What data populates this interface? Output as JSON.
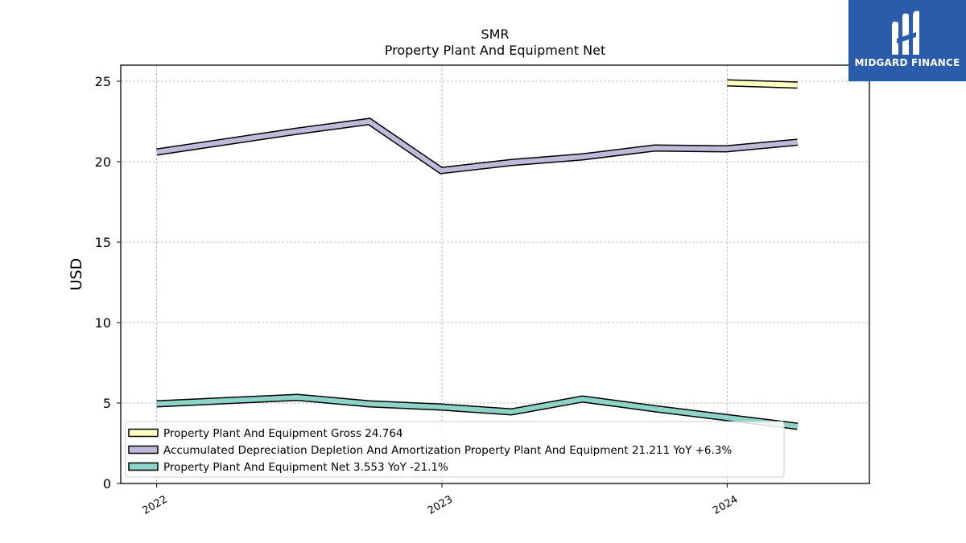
{
  "chart_data": {
    "type": "line",
    "title": "SMR",
    "subtitle": "Property Plant And Equipment Net",
    "ylabel": "USD",
    "ylim": [
      0,
      26
    ],
    "yticks": [
      0,
      5,
      10,
      15,
      20,
      25
    ],
    "xticks": [
      "2022",
      "2023",
      "2024"
    ],
    "grid": true,
    "legend_position": "lower-left",
    "series": [
      {
        "name": "Property Plant And Equipment Gross",
        "legend": "Property Plant And Equipment Gross  24.764",
        "color": "#ffffbf",
        "x": [
          "2024-01-01",
          "2024-03-31"
        ],
        "y": [
          24.9,
          24.764
        ]
      },
      {
        "name": "Accumulated Depreciation Depletion And Amortization Property Plant And Equipment",
        "legend": "Accumulated Depreciation Depletion And Amortization Property Plant And Equipment  21.211 YoY +6.3%",
        "color": "#bebada",
        "x": [
          "2022-01-01",
          "2022-06-30",
          "2022-09-30",
          "2022-12-31",
          "2023-03-31",
          "2023-06-30",
          "2023-09-30",
          "2023-12-31",
          "2024-03-31"
        ],
        "y": [
          20.6,
          21.9,
          22.5,
          19.45,
          19.95,
          20.3,
          20.85,
          20.8,
          21.211
        ]
      },
      {
        "name": "Property Plant And Equipment Net",
        "legend": "Property Plant And Equipment Net  3.553 YoY -21.1%",
        "color": "#8dd3c7",
        "x": [
          "2022-01-01",
          "2022-06-30",
          "2022-09-30",
          "2022-12-31",
          "2023-03-31",
          "2023-06-30",
          "2023-09-30",
          "2023-12-31",
          "2024-03-31"
        ],
        "y": [
          4.95,
          5.35,
          4.95,
          4.75,
          4.45,
          5.25,
          4.65,
          4.1,
          3.553
        ]
      }
    ]
  },
  "logo": {
    "text": "MIDGARD FINANCE",
    "color": "#2b5bab"
  }
}
